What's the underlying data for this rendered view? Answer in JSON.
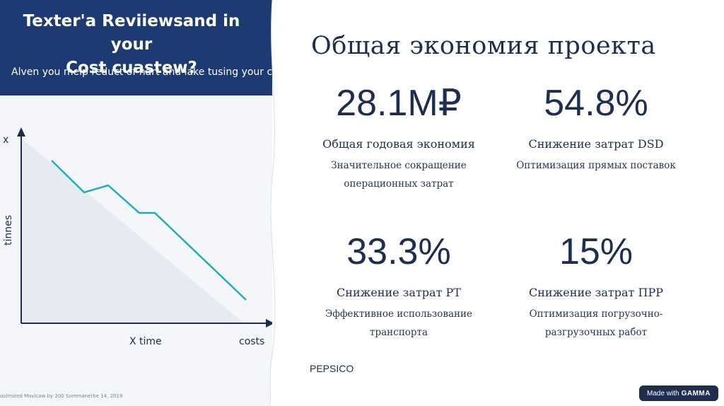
{
  "left_image": {
    "banner_title_line1": "Texter'a Reviiewsand in your",
    "banner_title_line2": "Cost cuastew?",
    "banner_subtitle": "Alven you melp reduct of nart and lake tusing your cost",
    "footnote": "ouimized Movicaw by 200 Sommanerbe 14, 2019",
    "chart": {
      "y_axis_top_label": "x",
      "y_axis_label": "tinnes",
      "x_axis_label": "X time",
      "x_axis_end_label": "costs",
      "line_color": "#1fb0b2"
    }
  },
  "title": "Общая экономия проекта",
  "stats": [
    {
      "value": "28.1M₽",
      "label": "Общая годовая экономия",
      "desc_line1": "Значительное сокращение",
      "desc_line2": "операционных затрат"
    },
    {
      "value": "54.8%",
      "label": "Снижение затрат DSD",
      "desc_line1": "Оптимизация прямых поставок",
      "desc_line2": ""
    },
    {
      "value": "33.3%",
      "label": "Снижение затрат РТ",
      "desc_line1": "Эффективное использование",
      "desc_line2": "транспорта"
    },
    {
      "value": "15%",
      "label": "Снижение затрат ПРР",
      "desc_line1": "Оптимизация погрузочно-",
      "desc_line2": "разгрузочных работ"
    }
  ],
  "brand": "PEPSICO",
  "badge": {
    "prefix": "Made with",
    "name": "GAMMA"
  }
}
